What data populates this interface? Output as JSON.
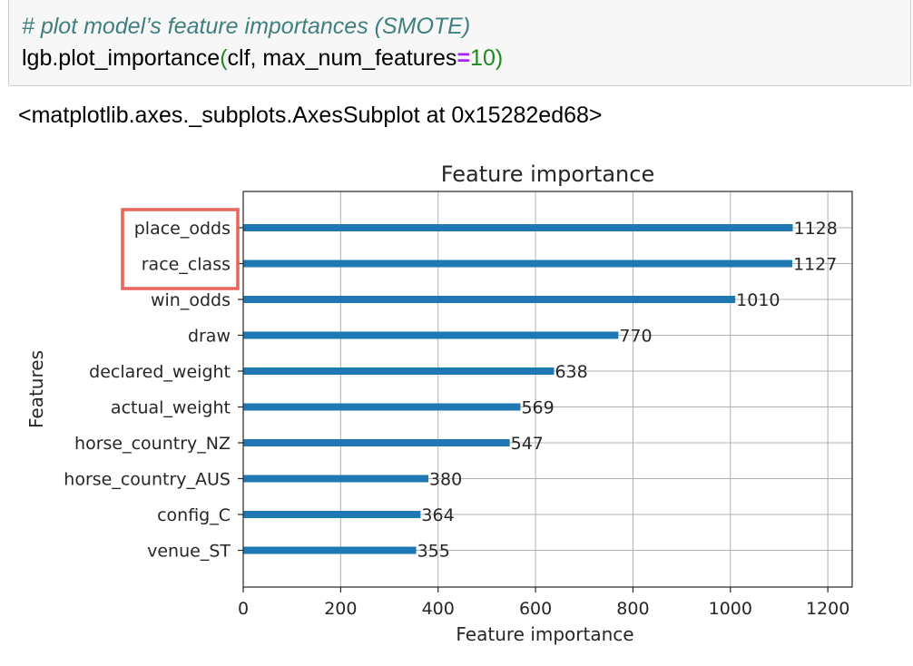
{
  "code_cell": {
    "comment": "# plot model’s feature importances (SMOTE)",
    "call_prefix": "lgb.plot_importance",
    "paren_open": "(",
    "arg_1": "clf, max_num_features",
    "equals": "=",
    "arg_value": "10",
    "paren_close": ")"
  },
  "output": {
    "repr_text": "<matplotlib.axes._subplots.AxesSubplot at 0x15282ed68>"
  },
  "highlight": {
    "color": "#e8655a",
    "features": [
      "place_odds",
      "race_class"
    ]
  },
  "chart_data": {
    "type": "bar",
    "orientation": "horizontal",
    "title": "Feature importance",
    "xlabel": "Feature importance",
    "ylabel": "Features",
    "categories": [
      "place_odds",
      "race_class",
      "win_odds",
      "draw",
      "declared_weight",
      "actual_weight",
      "horse_country_NZ",
      "horse_country_AUS",
      "config_C",
      "venue_ST"
    ],
    "values": [
      1128,
      1127,
      1010,
      770,
      638,
      569,
      547,
      380,
      364,
      355
    ],
    "xlim": [
      0,
      1250
    ],
    "xticks": [
      0,
      200,
      400,
      600,
      800,
      1000,
      1200
    ],
    "grid": true,
    "bar_color": "#1f77b4"
  }
}
